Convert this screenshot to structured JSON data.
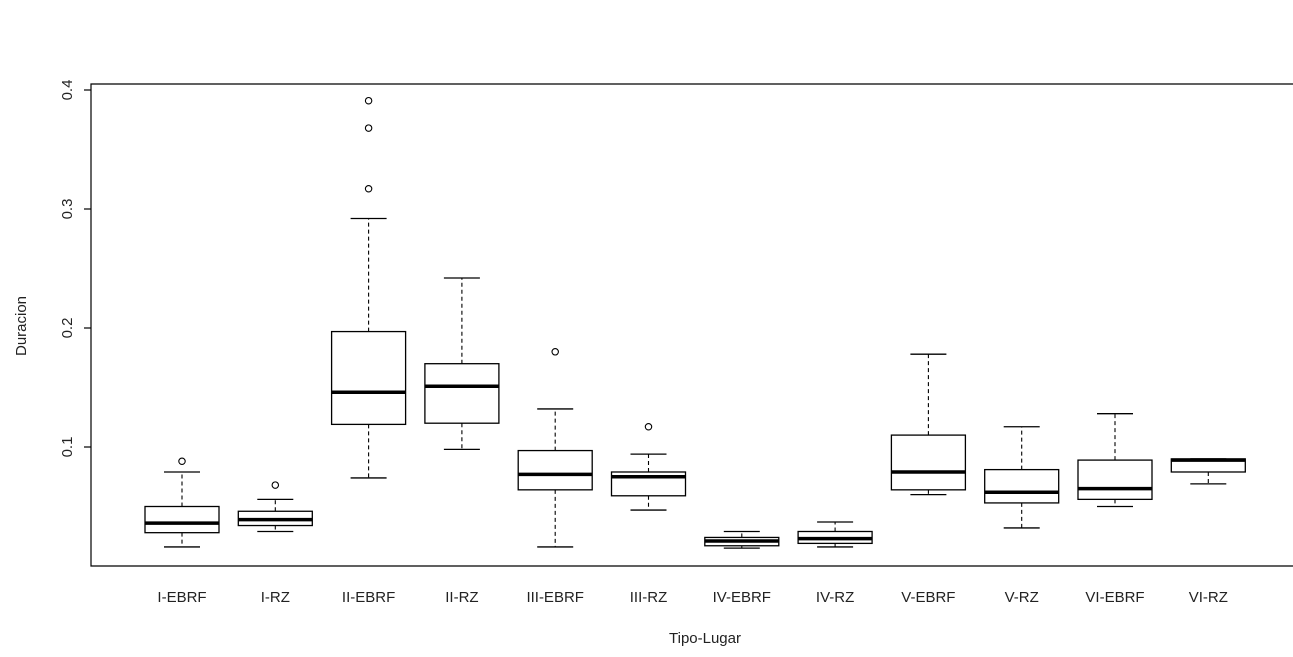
{
  "chart_data": {
    "type": "boxplot",
    "title": "",
    "xlabel": "Tipo-Lugar",
    "ylabel": "Duracion",
    "ylim": [
      0.0,
      0.4
    ],
    "yticks": [
      0.1,
      0.2,
      0.3,
      0.4
    ],
    "ytick_labels": [
      "0.1",
      "0.2",
      "0.3",
      "0.4"
    ],
    "categories": [
      "I-EBRF",
      "I-RZ",
      "II-EBRF",
      "II-RZ",
      "III-EBRF",
      "III-RZ",
      "IV-EBRF",
      "IV-RZ",
      "V-EBRF",
      "V-RZ",
      "VI-EBRF",
      "VI-RZ"
    ],
    "boxes": [
      {
        "category": "I-EBRF",
        "whisker_low": 0.016,
        "q1": 0.028,
        "median": 0.036,
        "q3": 0.05,
        "whisker_high": 0.079,
        "outliers": [
          0.088
        ]
      },
      {
        "category": "I-RZ",
        "whisker_low": 0.029,
        "q1": 0.034,
        "median": 0.039,
        "q3": 0.046,
        "whisker_high": 0.056,
        "outliers": [
          0.068
        ]
      },
      {
        "category": "II-EBRF",
        "whisker_low": 0.074,
        "q1": 0.119,
        "median": 0.146,
        "q3": 0.197,
        "whisker_high": 0.292,
        "outliers": [
          0.317,
          0.368,
          0.391
        ]
      },
      {
        "category": "II-RZ",
        "whisker_low": 0.098,
        "q1": 0.12,
        "median": 0.151,
        "q3": 0.17,
        "whisker_high": 0.242,
        "outliers": []
      },
      {
        "category": "III-EBRF",
        "whisker_low": 0.016,
        "q1": 0.064,
        "median": 0.077,
        "q3": 0.097,
        "whisker_high": 0.132,
        "outliers": [
          0.18
        ]
      },
      {
        "category": "III-RZ",
        "whisker_low": 0.047,
        "q1": 0.059,
        "median": 0.075,
        "q3": 0.079,
        "whisker_high": 0.094,
        "outliers": [
          0.117
        ]
      },
      {
        "category": "IV-EBRF",
        "whisker_low": 0.015,
        "q1": 0.017,
        "median": 0.021,
        "q3": 0.024,
        "whisker_high": 0.029,
        "outliers": []
      },
      {
        "category": "IV-RZ",
        "whisker_low": 0.016,
        "q1": 0.019,
        "median": 0.023,
        "q3": 0.029,
        "whisker_high": 0.037,
        "outliers": []
      },
      {
        "category": "V-EBRF",
        "whisker_low": 0.06,
        "q1": 0.064,
        "median": 0.079,
        "q3": 0.11,
        "whisker_high": 0.178,
        "outliers": []
      },
      {
        "category": "V-RZ",
        "whisker_low": 0.032,
        "q1": 0.053,
        "median": 0.062,
        "q3": 0.081,
        "whisker_high": 0.117,
        "outliers": []
      },
      {
        "category": "VI-EBRF",
        "whisker_low": 0.05,
        "q1": 0.056,
        "median": 0.065,
        "q3": 0.089,
        "whisker_high": 0.128,
        "outliers": []
      },
      {
        "category": "VI-RZ",
        "whisker_low": 0.069,
        "q1": 0.079,
        "median": 0.089,
        "q3": 0.09,
        "whisker_high": 0.09,
        "outliers": []
      }
    ],
    "grid": false,
    "legend": "none",
    "colors": {
      "box_fill": "#ffffff",
      "stroke": "#000000",
      "text": "#222222"
    }
  }
}
